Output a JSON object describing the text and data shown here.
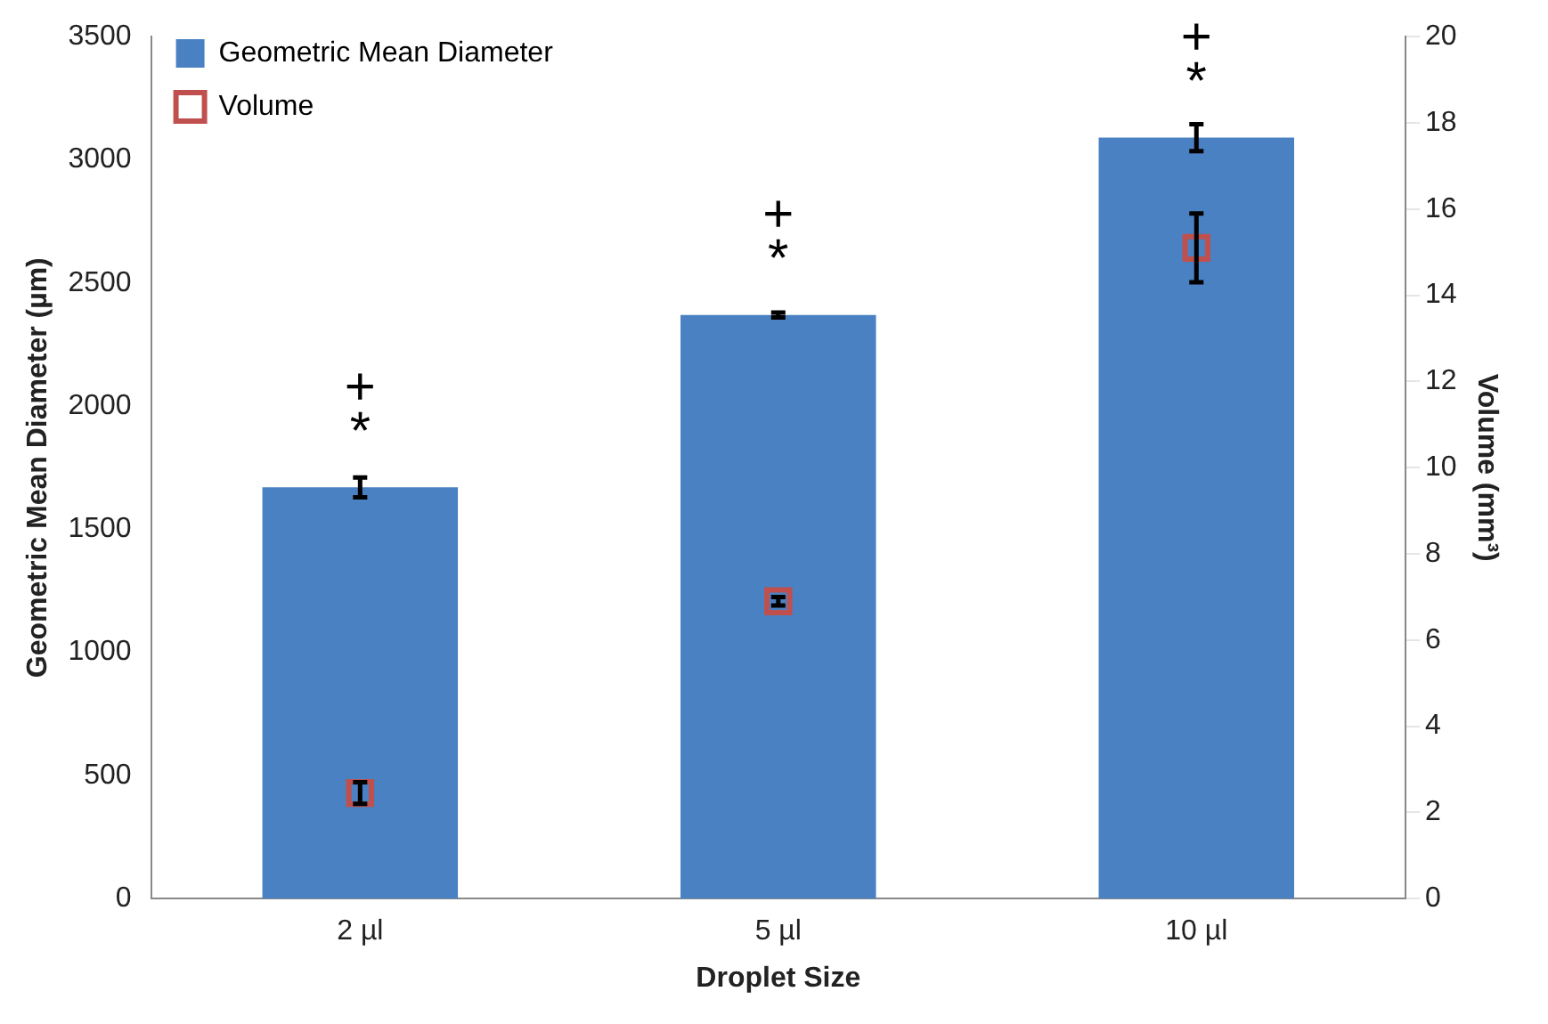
{
  "chart_data": {
    "type": "bar",
    "xlabel": "Droplet Size",
    "ylabel": "Geometric Mean Diameter (µm)",
    "y2label": "Volume (mm³)",
    "categories": [
      "2 µl",
      "5 µl",
      "10 µl"
    ],
    "series": [
      {
        "name": "Geometric Mean Diameter",
        "color": "#4a81c2",
        "values": [
          1670,
          2370,
          3090
        ],
        "errors": [
          40,
          10,
          55
        ]
      },
      {
        "name": "Volume",
        "type": "scatter",
        "axis": "y2",
        "color": "#c0504d",
        "x": [
          "2 µl",
          "5 µl",
          "10 µl"
        ],
        "values": [
          2.45,
          6.9,
          15.1
        ],
        "errors": [
          0.25,
          0.1,
          0.8
        ],
        "marker": "square"
      }
    ],
    "ylim": [
      0,
      3500
    ],
    "yticks": [
      0,
      500,
      1000,
      1500,
      2000,
      2500,
      3000,
      3500
    ],
    "y2lim": [
      0,
      20
    ],
    "y2ticks": [
      0,
      2,
      4,
      6,
      8,
      10,
      12,
      14,
      16,
      18,
      20
    ],
    "annotations": [
      "*",
      "+",
      "*",
      "+",
      "*",
      "+"
    ],
    "grid": false,
    "legend": "top left"
  }
}
